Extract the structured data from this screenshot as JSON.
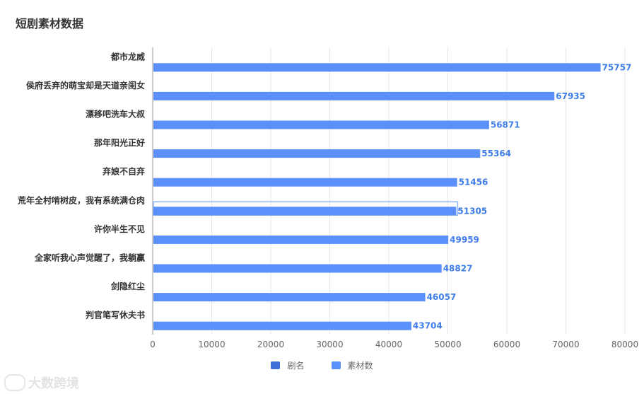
{
  "title": "短剧素材数据",
  "colors": {
    "bar": "#5b8ff9",
    "grid": "#e6e6e6",
    "axis": "#666666",
    "label": "#3f7ee8",
    "highlight_border": "#8fb4f5"
  },
  "legend": [
    {
      "label": "剧名",
      "color": "#3f6fd8"
    },
    {
      "label": "素材数",
      "color": "#5b8ff9"
    }
  ],
  "watermark": "大数跨境",
  "chart_data": {
    "type": "bar",
    "orientation": "horizontal",
    "categories": [
      "都市龙威",
      "侯府丢弃的萌宝却是天道亲闺女",
      "漂移吧洗车大叔",
      "那年阳光正好",
      "弃娘不自弃",
      "荒年全村啃树皮，我有系统满仓肉",
      "许你半生不见",
      "全家听我心声觉醒了，我躺赢",
      "剑隐红尘",
      "判官笔写休夫书"
    ],
    "values": [
      75757,
      67935,
      56871,
      55364,
      51456,
      51305,
      49959,
      48827,
      46057,
      43704
    ],
    "highlighted_index": 5,
    "xlim": [
      0,
      80000
    ],
    "xticks": [
      "0",
      "10000",
      "20000",
      "30000",
      "40000",
      "50000",
      "60000",
      "70000",
      "80000"
    ],
    "grid": true,
    "legend_position": "bottom"
  }
}
